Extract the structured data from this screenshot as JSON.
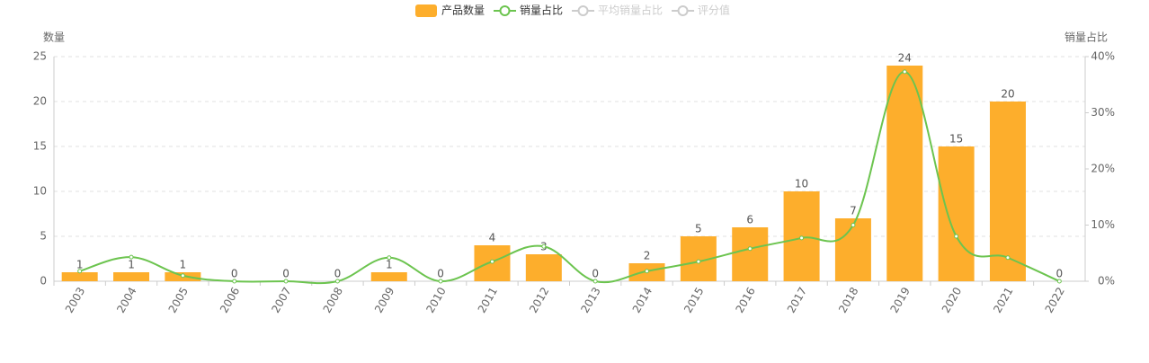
{
  "chart_data": {
    "type": "bar-line",
    "categories": [
      "2003",
      "2004",
      "2005",
      "2006",
      "2007",
      "2008",
      "2009",
      "2010",
      "2011",
      "2012",
      "2013",
      "2014",
      "2015",
      "2016",
      "2017",
      "2018",
      "2019",
      "2020",
      "2021",
      "2022"
    ],
    "series": [
      {
        "name": "产品数量",
        "type": "bar",
        "color": "#fdae2c",
        "values": [
          1,
          1,
          1,
          0,
          0,
          0,
          1,
          0,
          4,
          3,
          0,
          2,
          5,
          6,
          10,
          7,
          24,
          15,
          20,
          0
        ]
      },
      {
        "name": "销量占比",
        "type": "line",
        "axis": "y2",
        "color": "#6cc44f",
        "smooth": true,
        "values": [
          1.8,
          4.3,
          1,
          0,
          0,
          0,
          4.2,
          0,
          3.5,
          6.2,
          0,
          1.8,
          3.5,
          5.8,
          7.7,
          10,
          37.3,
          8,
          4.2,
          0
        ]
      }
    ],
    "legend_inactive": [
      "平均销量占比",
      "评分值"
    ],
    "ylabel": "数量",
    "y2label": "销量占比",
    "ylim": [
      0,
      25
    ],
    "yticks": [
      0,
      5,
      10,
      15,
      20,
      25
    ],
    "y2lim": [
      0,
      40
    ],
    "y2ticks": [
      {
        "value": 0,
        "label": "0%"
      },
      {
        "value": 10,
        "label": "10%"
      },
      {
        "value": 20,
        "label": "20%"
      },
      {
        "value": 30,
        "label": "30%"
      },
      {
        "value": 40,
        "label": "40%"
      }
    ],
    "grid": true
  }
}
